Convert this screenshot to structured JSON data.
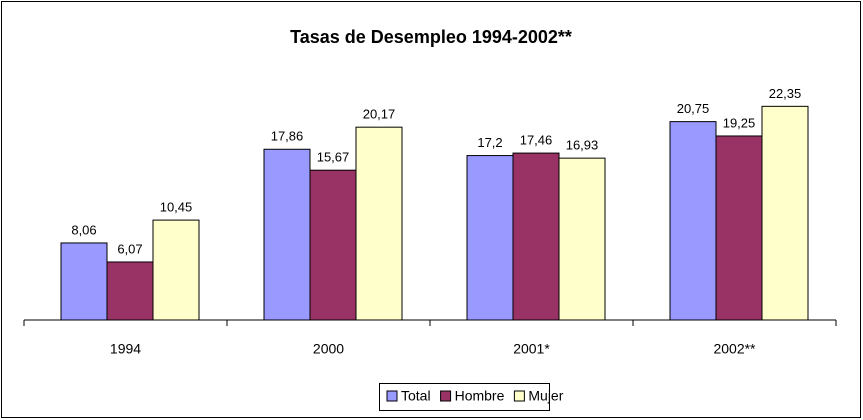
{
  "chart_data": {
    "type": "bar",
    "title": "Tasas de Desempleo 1994-2002**",
    "categories": [
      "1994",
      "2000",
      "2001*",
      "2002**"
    ],
    "series": [
      {
        "name": "Total",
        "color": "#9999ff",
        "values": [
          8.06,
          17.86,
          17.2,
          20.75
        ],
        "value_labels": [
          "8,06",
          "17,86",
          "17,2",
          "20,75"
        ]
      },
      {
        "name": "Hombre",
        "color": "#993366",
        "values": [
          6.07,
          15.67,
          17.46,
          19.25
        ],
        "value_labels": [
          "6,07",
          "15,67",
          "17,46",
          "19,25"
        ]
      },
      {
        "name": "Mujer",
        "color": "#ffffcc",
        "values": [
          10.45,
          20.17,
          16.93,
          22.35
        ],
        "value_labels": [
          "10,45",
          "20,17",
          "16,93",
          "22,35"
        ]
      }
    ],
    "ylim": [
      0,
      25
    ],
    "legend": "bottom"
  }
}
